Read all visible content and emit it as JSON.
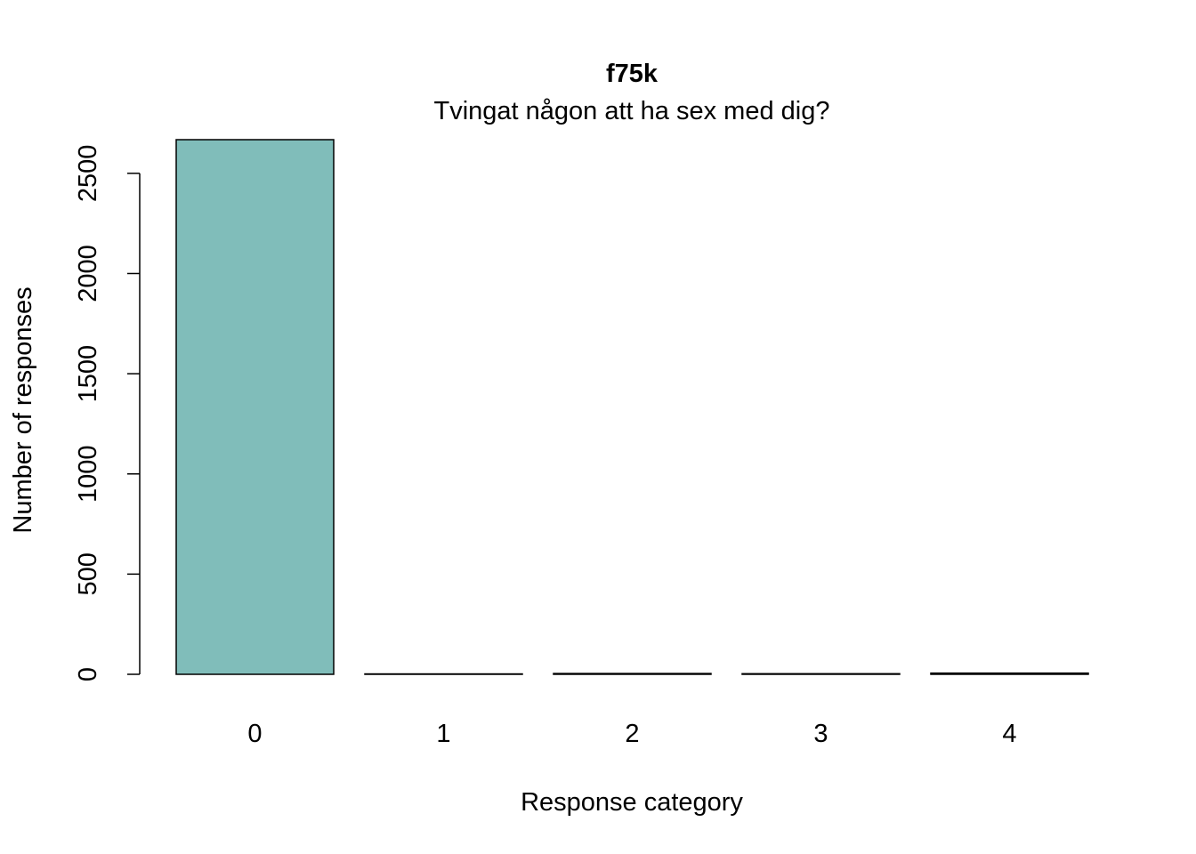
{
  "chart_data": {
    "type": "bar",
    "title": "f75k",
    "subtitle": "Tvingat någon att ha sex med dig?",
    "xlabel": "Response category",
    "ylabel": "Number of responses",
    "categories": [
      "0",
      "1",
      "2",
      "3",
      "4"
    ],
    "values": [
      2668,
      2,
      4,
      3,
      6
    ],
    "ylim": [
      0,
      2668
    ],
    "yticks": [
      0,
      500,
      1000,
      1500,
      2000,
      2500
    ],
    "grid": false,
    "legend": "none",
    "bar_color": "#80BDBA",
    "bar_stroke": "#000000"
  }
}
